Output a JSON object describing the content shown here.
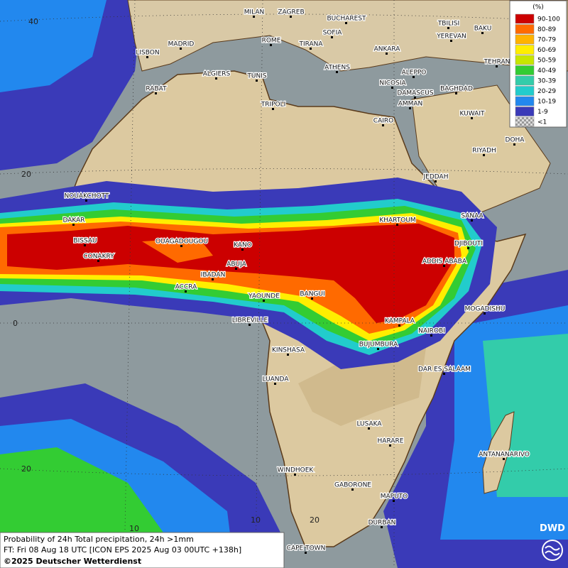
{
  "legend": {
    "title": "(%)",
    "items": [
      {
        "label": "90-100",
        "color": "#cc0000"
      },
      {
        "label": "80-89",
        "color": "#ff6a00"
      },
      {
        "label": "70-79",
        "color": "#ffb300"
      },
      {
        "label": "60-69",
        "color": "#ffee00"
      },
      {
        "label": "50-59",
        "color": "#c8e600"
      },
      {
        "label": "40-49",
        "color": "#33cc33"
      },
      {
        "label": "30-39",
        "color": "#33ccaa"
      },
      {
        "label": "20-29",
        "color": "#22cccc"
      },
      {
        "label": "10-19",
        "color": "#2288ee"
      },
      {
        "label": "1-9",
        "color": "#3a3ab8"
      },
      {
        "label": "<1",
        "color": "#bbbbbb"
      }
    ]
  },
  "cities": [
    "MILAN",
    "ZAGREB",
    "BUCHAREST",
    "TBILISI",
    "BAKU",
    "MADRID",
    "ROME",
    "SOFIA",
    "YEREVAN",
    "LISBON",
    "TIRANA",
    "ANKARA",
    "ATHENS",
    "TEHRAN",
    "ALGIERS",
    "TUNIS",
    "ALEPPO",
    "RABAT",
    "NICOSIA",
    "BAGHDAD",
    "DAMASCUS",
    "TRIPOLI",
    "AMMAN",
    "KUWAIT",
    "CAIRO",
    "DOHA",
    "RIYADH",
    "JEDDAH",
    "NOUAKCHOTT",
    "SANAA",
    "DAKAR",
    "KHARTOUM",
    "BISSAU",
    "OUAGADOUGOU",
    "KANO",
    "DJIBOUTI",
    "CONAKRY",
    "ABUJA",
    "ADDIS ABABA",
    "IBADAN",
    "ACCRA",
    "YAOUNDE",
    "BANGUI",
    "MOGADISHU",
    "LIBREVILLE",
    "KAMPALA",
    "NAIROBI",
    "BUJUMBURA",
    "KINSHASA",
    "DAR ES SALAAM",
    "LUANDA",
    "LUSAKA",
    "HARARE",
    "ANTANANARIVO",
    "WINDHOEK",
    "GABORONE",
    "MAPUTO",
    "DURBAN",
    "CAPE TOWN"
  ],
  "grid_labels": [
    "40",
    "20",
    "0",
    "20",
    "10",
    "10",
    "20"
  ],
  "footer": {
    "line1": "Probability of 24h Total precipitation, 24h >1mm",
    "line2": "FT: Fri 08 Aug 18 UTC [ICON EPS 2025 Aug 03 00UTC +138h]",
    "line3": "©2025 Deutscher Wetterdienst"
  },
  "logo": "DWD"
}
